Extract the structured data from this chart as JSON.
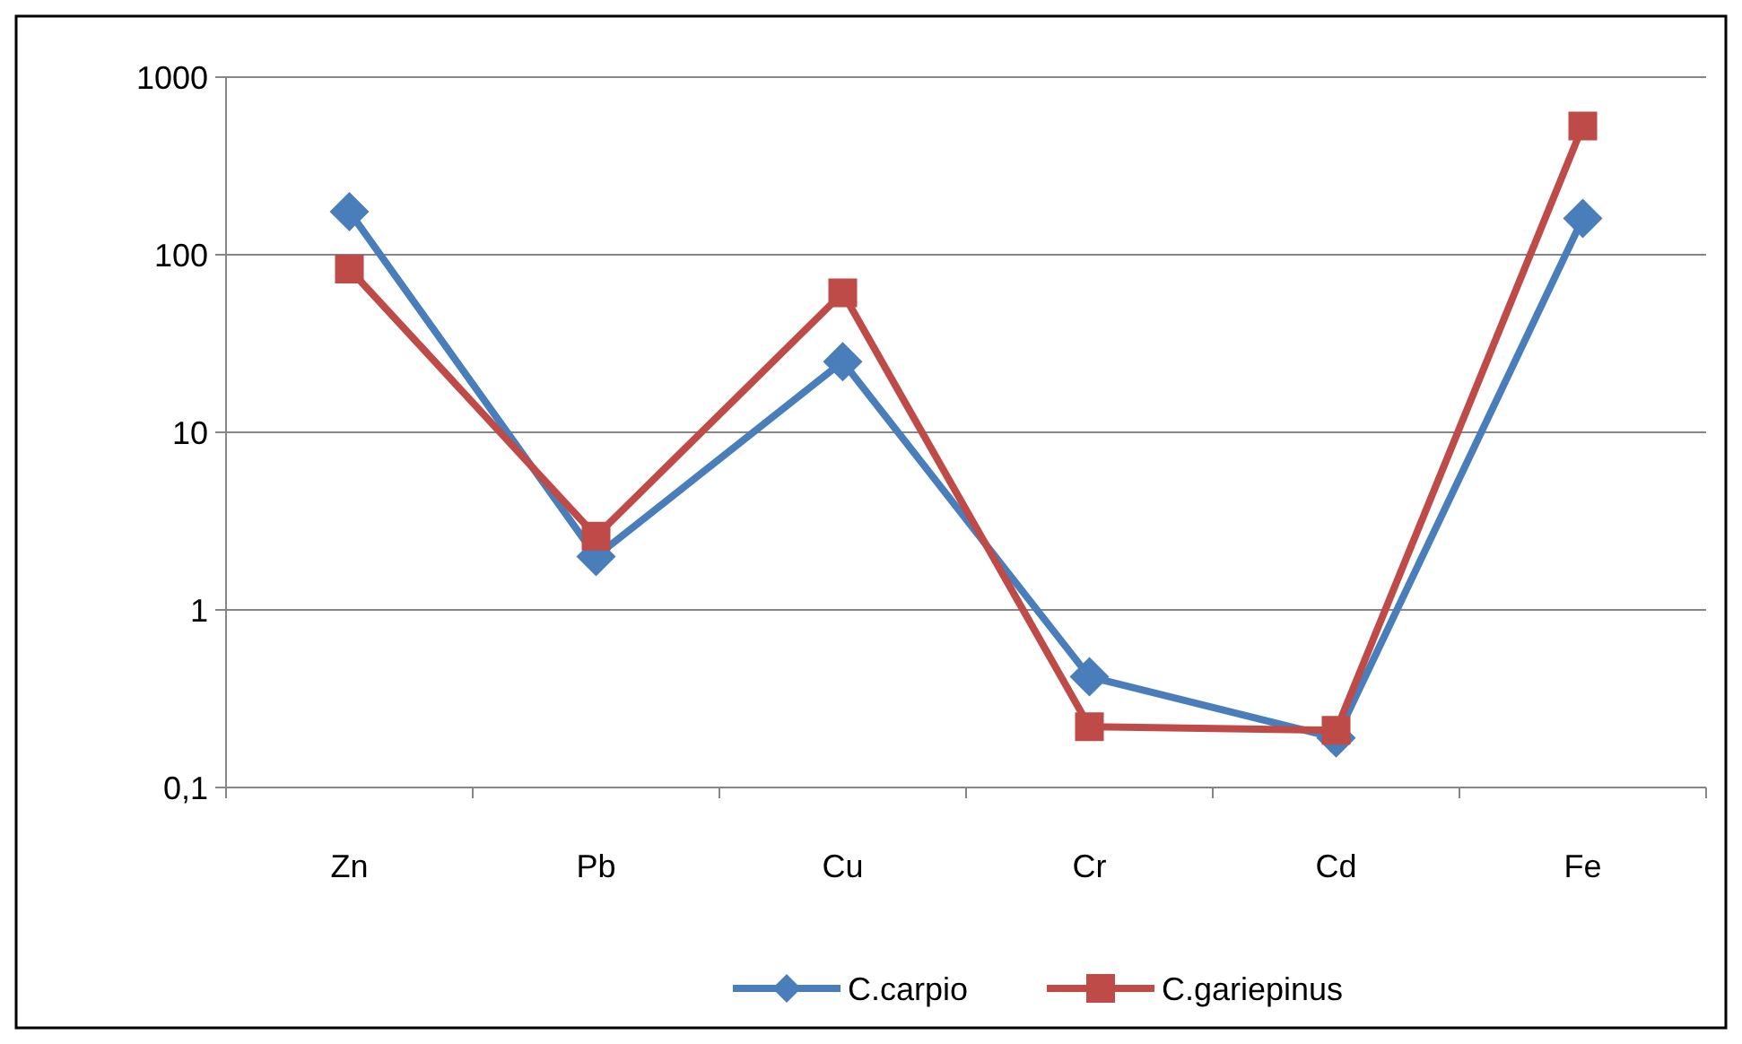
{
  "chart_data": {
    "type": "line",
    "categories": [
      "Zn",
      "Pb",
      "Cu",
      "Cr",
      "Cd",
      "Fe"
    ],
    "log": "y",
    "ylim": [
      0.1,
      1000
    ],
    "yticks": [
      {
        "value": 0.1,
        "label": "0,1"
      },
      1,
      10,
      100,
      1000
    ],
    "grid": "y",
    "legend": "bottom",
    "line_style": "solid",
    "series": [
      {
        "name": "C.carpio",
        "color": "#4a7ebb",
        "marker": "diamond",
        "values": [
          175,
          2,
          25,
          0.42,
          0.19,
          160
        ]
      },
      {
        "name": "C.gariepinus",
        "color": "#be4b48",
        "marker": "square",
        "values": [
          83,
          2.6,
          61,
          0.22,
          0.21,
          530
        ]
      }
    ]
  }
}
